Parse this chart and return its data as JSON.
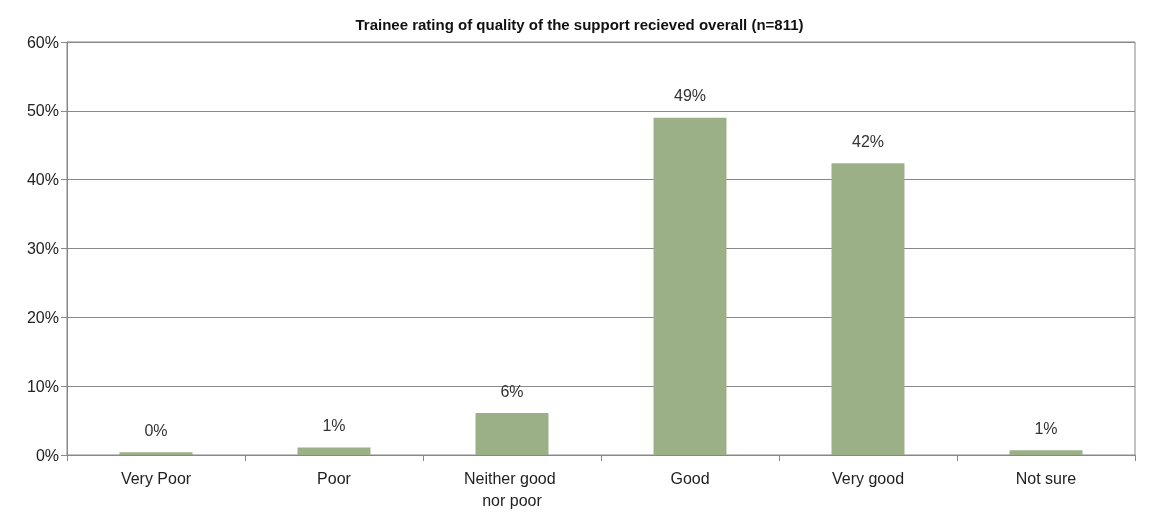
{
  "chart_data": {
    "type": "bar",
    "title": "Trainee rating of quality of the support recieved overall (n=811)",
    "categories": [
      "Very Poor",
      "Poor",
      "Neither good nor poor",
      "Good",
      "Very good",
      "Not sure"
    ],
    "values": [
      0.4,
      1.1,
      6.1,
      49,
      42.4,
      0.7
    ],
    "value_labels": [
      "0%",
      "1%",
      "6%",
      "49%",
      "42%",
      "1%"
    ],
    "color": "#9bb086",
    "ylim": [
      0,
      60
    ],
    "yticks": [
      {
        "value": 0,
        "label": "0%"
      },
      {
        "value": 10,
        "label": "10%"
      },
      {
        "value": 20,
        "label": "20%"
      },
      {
        "value": 30,
        "label": "30%"
      },
      {
        "value": 40,
        "label": "40%"
      },
      {
        "value": 50,
        "label": "50%"
      },
      {
        "value": 60,
        "label": "60%"
      }
    ],
    "grid": "y"
  }
}
